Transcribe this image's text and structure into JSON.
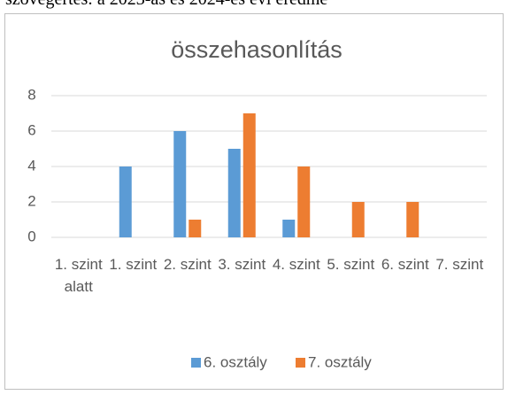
{
  "header_text": "szövegértés: a 2023-as és 2024-es évi eredmé",
  "chart_data": {
    "type": "bar",
    "title": "összehasonlítás",
    "categories": [
      "1. szint alatt",
      "1. szint",
      "2. szint",
      "3. szint",
      "4. szint",
      "5. szint",
      "6. szint",
      "7. szint"
    ],
    "series": [
      {
        "name": "6. osztály",
        "color": "#5b9bd5",
        "values": [
          0,
          4,
          6,
          5,
          1,
          0,
          0,
          0
        ]
      },
      {
        "name": "7. osztály",
        "color": "#ed7d31",
        "values": [
          0,
          0,
          1,
          7,
          4,
          2,
          2,
          0
        ]
      }
    ],
    "ylim": [
      0,
      8
    ],
    "yticks": [
      0,
      2,
      4,
      6,
      8
    ],
    "grid": true,
    "legend": "bottom"
  }
}
